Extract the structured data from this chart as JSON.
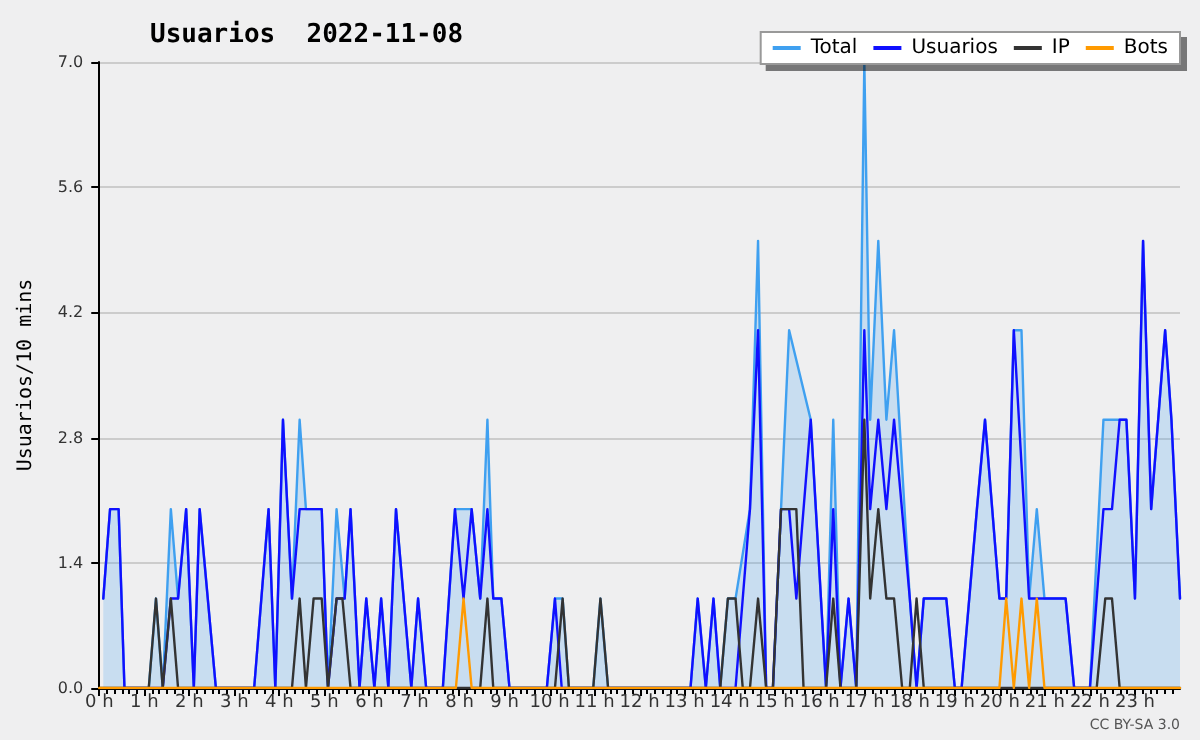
{
  "chart_data": {
    "type": "line",
    "title": "Usuarios  2022-11-08",
    "ylabel": "Usuarios/10 mins",
    "annotations": [
      "CC BY-SA 3.0"
    ],
    "xlim": [
      0,
      24
    ],
    "xticks": [
      {
        "value": 0,
        "label": "0 h"
      },
      {
        "value": 1,
        "label": "1 h"
      },
      {
        "value": 2,
        "label": "2 h"
      },
      {
        "value": 3,
        "label": "3 h"
      },
      {
        "value": 4,
        "label": "4 h"
      },
      {
        "value": 5,
        "label": "5 h"
      },
      {
        "value": 6,
        "label": "6 h"
      },
      {
        "value": 7,
        "label": "7 h"
      },
      {
        "value": 8,
        "label": "8 h"
      },
      {
        "value": 9,
        "label": "9 h"
      },
      {
        "value": 10,
        "label": "10 h"
      },
      {
        "value": 11,
        "label": "11 h"
      },
      {
        "value": 12,
        "label": "12 h"
      },
      {
        "value": 13,
        "label": "13 h"
      },
      {
        "value": 14,
        "label": "14 h"
      },
      {
        "value": 15,
        "label": "15 h"
      },
      {
        "value": 16,
        "label": "16 h"
      },
      {
        "value": 17,
        "label": "17 h"
      },
      {
        "value": 18,
        "label": "18 h"
      },
      {
        "value": 19,
        "label": "19 h"
      },
      {
        "value": 20,
        "label": "20 h"
      },
      {
        "value": 21,
        "label": "21 h"
      },
      {
        "value": 22,
        "label": "22 h"
      },
      {
        "value": 23,
        "label": "23 h"
      }
    ],
    "ylim": [
      0,
      7
    ],
    "yticks": [
      {
        "value": 0,
        "label": "0.0"
      },
      1.4,
      2.8,
      4.2,
      5.6,
      {
        "value": 7,
        "label": "7.0"
      }
    ],
    "grid": "y",
    "legend": "top right",
    "marker": "none",
    "line_style": "solid",
    "series": [
      {
        "name": "Total",
        "type": "area",
        "color": "#3fa0f0",
        "x": [
          0.09,
          0.24,
          0.43,
          0.56,
          1.1,
          1.26,
          1.41,
          1.59,
          1.75,
          1.93,
          2.1,
          2.23,
          2.59,
          3.44,
          3.76,
          3.91,
          4.08,
          4.28,
          4.45,
          4.59,
          4.94,
          5.08,
          5.27,
          5.45,
          5.58,
          5.78,
          5.93,
          6.11,
          6.26,
          6.42,
          6.59,
          6.93,
          7.08,
          7.26,
          7.63,
          7.9,
          8.27,
          8.46,
          8.62,
          8.75,
          8.93,
          9.11,
          9.94,
          10.12,
          10.29,
          10.43,
          10.97,
          11.13,
          11.3,
          13.13,
          13.29,
          13.47,
          13.64,
          13.79,
          13.96,
          14.13,
          14.45,
          14.63,
          14.81,
          14.96,
          15.14,
          15.32,
          15.8,
          16.14,
          16.3,
          16.46,
          16.64,
          16.81,
          16.99,
          17.12,
          17.3,
          17.48,
          17.65,
          18.0,
          18.15,
          18.31,
          18.81,
          19.0,
          19.15,
          19.49,
          19.67,
          19.99,
          20.14,
          20.31,
          20.48,
          20.65,
          20.82,
          20.99,
          21.46,
          21.65,
          22.0,
          22.3,
          22.81,
          23.0,
          23.18,
          23.36,
          23.67,
          23.81,
          24.0
        ],
        "values": [
          1,
          2,
          2,
          0,
          0,
          1,
          0,
          2,
          1,
          2,
          0,
          2,
          0,
          0,
          2,
          0,
          3,
          1,
          3,
          2,
          2,
          0,
          2,
          1,
          2,
          0,
          1,
          0,
          1,
          0,
          2,
          0,
          1,
          0,
          0,
          2,
          2,
          1,
          3,
          1,
          1,
          0,
          0,
          1,
          1,
          0,
          0,
          1,
          0,
          0,
          1,
          0,
          1,
          0,
          1,
          1,
          2,
          5,
          0,
          0,
          2,
          4,
          3,
          0,
          3,
          0,
          1,
          0,
          7,
          3,
          5,
          3,
          4,
          1,
          0,
          1,
          1,
          0,
          0,
          2,
          3,
          1,
          1,
          4,
          4,
          1,
          2,
          1,
          1,
          0,
          0,
          3,
          3,
          1,
          5,
          2,
          4,
          3,
          1
        ]
      },
      {
        "name": "Usuarios",
        "type": "line",
        "color": "#1010ff",
        "x": [
          0.09,
          0.24,
          0.43,
          0.56,
          1.41,
          1.59,
          1.75,
          1.93,
          2.1,
          2.23,
          2.59,
          3.44,
          3.76,
          3.91,
          4.08,
          4.28,
          4.45,
          4.94,
          5.08,
          5.27,
          5.45,
          5.58,
          5.78,
          5.93,
          6.11,
          6.26,
          6.42,
          6.59,
          6.93,
          7.08,
          7.26,
          7.63,
          7.9,
          8.09,
          8.27,
          8.46,
          8.62,
          8.75,
          8.93,
          9.11,
          9.94,
          10.12,
          10.27,
          13.13,
          13.29,
          13.47,
          13.64,
          13.79,
          14.13,
          14.45,
          14.63,
          14.81,
          14.96,
          15.14,
          15.32,
          15.48,
          15.8,
          16.14,
          16.3,
          16.46,
          16.64,
          16.81,
          16.99,
          17.12,
          17.3,
          17.48,
          17.65,
          18.0,
          18.15,
          18.31,
          18.81,
          19.0,
          19.15,
          19.49,
          19.67,
          19.99,
          20.14,
          20.31,
          20.65,
          21.46,
          21.65,
          22.0,
          22.3,
          22.49,
          22.66,
          22.81,
          23.0,
          23.18,
          23.36,
          23.67,
          23.81,
          24.0
        ],
        "values": [
          1,
          2,
          2,
          0,
          0,
          1,
          1,
          2,
          0,
          2,
          0,
          0,
          2,
          0,
          3,
          1,
          2,
          2,
          0,
          1,
          1,
          2,
          0,
          1,
          0,
          1,
          0,
          2,
          0,
          1,
          0,
          0,
          2,
          1,
          2,
          1,
          2,
          1,
          1,
          0,
          0,
          1,
          0,
          0,
          1,
          0,
          1,
          0,
          0,
          2,
          4,
          0,
          0,
          2,
          2,
          1,
          3,
          0,
          2,
          0,
          1,
          0,
          4,
          2,
          3,
          2,
          3,
          1,
          0,
          1,
          1,
          0,
          0,
          2,
          3,
          1,
          1,
          4,
          1,
          1,
          0,
          0,
          2,
          2,
          3,
          3,
          1,
          5,
          2,
          4,
          3,
          1
        ]
      },
      {
        "name": "IP",
        "type": "line",
        "color": "#333333",
        "x": [
          0,
          1.1,
          1.26,
          1.41,
          1.59,
          1.75,
          4.28,
          4.45,
          4.59,
          4.76,
          4.94,
          5.08,
          5.27,
          5.4,
          5.58,
          8.46,
          8.62,
          8.75,
          10.12,
          10.29,
          10.43,
          10.97,
          11.13,
          11.3,
          13.79,
          13.96,
          14.13,
          14.29,
          14.45,
          14.63,
          14.81,
          14.96,
          15.14,
          15.48,
          15.64,
          16.14,
          16.3,
          16.46,
          16.81,
          16.99,
          17.12,
          17.3,
          17.48,
          17.65,
          17.83,
          18.0,
          18.15,
          18.31,
          22.15,
          22.34,
          22.49,
          22.66,
          24.0
        ],
        "values": [
          0,
          0,
          1,
          0,
          1,
          0,
          0,
          1,
          0,
          1,
          1,
          0,
          1,
          1,
          0,
          0,
          1,
          0,
          0,
          1,
          0,
          0,
          1,
          0,
          0,
          1,
          1,
          0,
          0,
          1,
          0,
          0,
          2,
          2,
          0,
          0,
          1,
          0,
          0,
          3,
          1,
          2,
          1,
          1,
          0,
          0,
          1,
          0,
          0,
          1,
          1,
          0,
          0
        ]
      },
      {
        "name": "Bots",
        "type": "line",
        "color": "#ff9a00",
        "x": [
          0,
          7.92,
          8.09,
          8.27,
          19.99,
          20.14,
          20.31,
          20.48,
          20.65,
          20.82,
          20.99,
          24.0
        ],
        "values": [
          0,
          0,
          1,
          0,
          0,
          1,
          0,
          1,
          0,
          1,
          0,
          0
        ]
      }
    ]
  }
}
